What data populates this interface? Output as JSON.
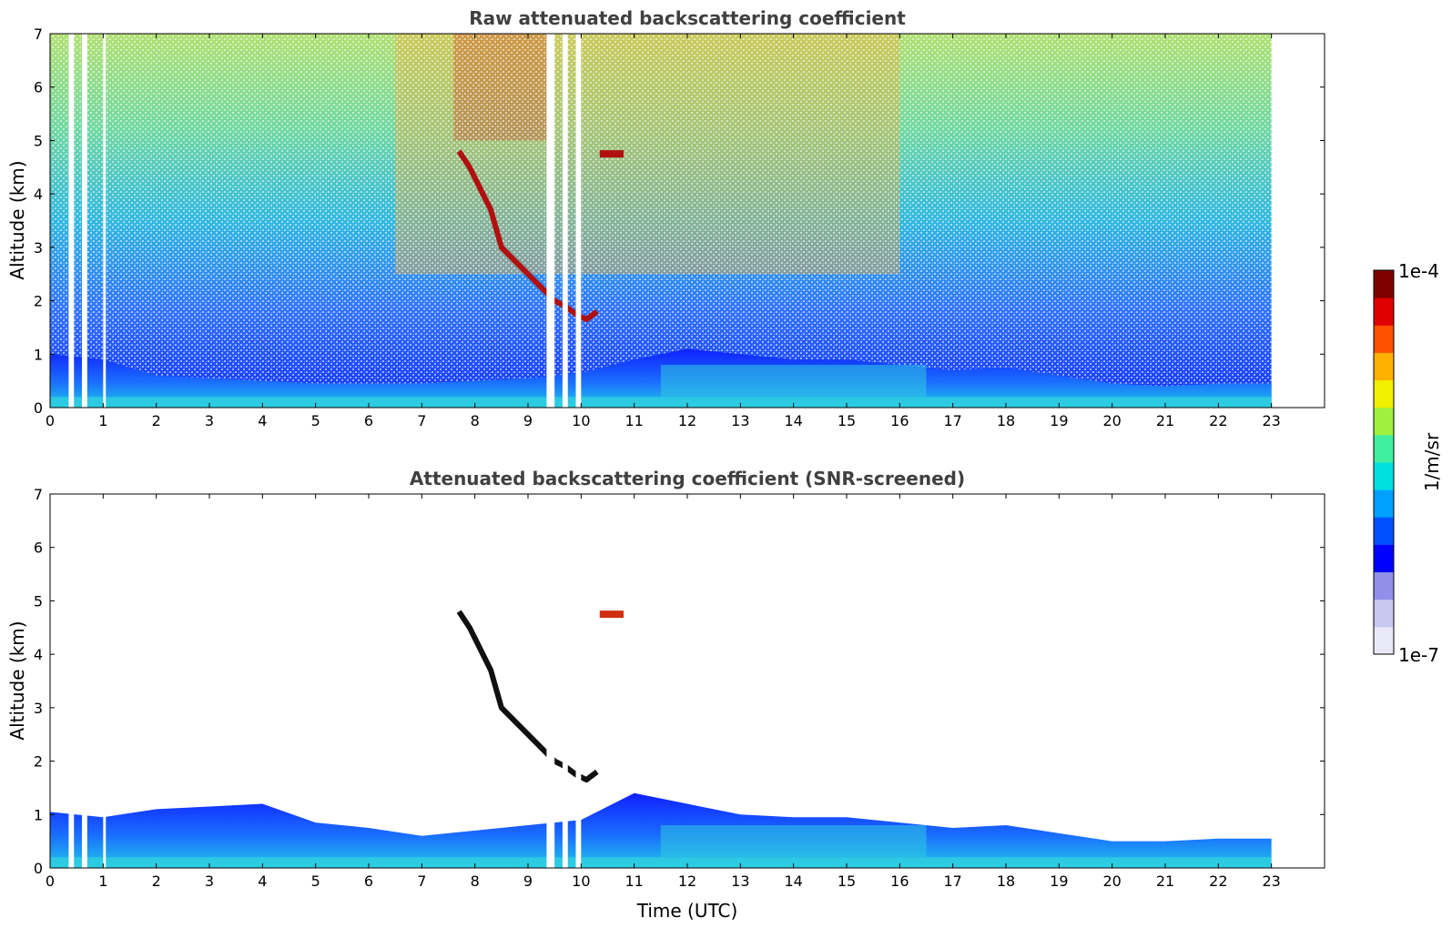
{
  "chart_data": [
    {
      "type": "heatmap",
      "title": "Raw attenuated backscattering coefficient",
      "xlabel": "",
      "ylabel": "Altitude (km)",
      "xlim": [
        0,
        24
      ],
      "ylim": [
        0,
        7
      ],
      "xticks": [
        "0",
        "1",
        "2",
        "3",
        "4",
        "5",
        "6",
        "7",
        "8",
        "9",
        "10",
        "11",
        "12",
        "13",
        "14",
        "15",
        "16",
        "17",
        "18",
        "19",
        "20",
        "21",
        "22",
        "23"
      ],
      "yticks": [
        "0",
        "1",
        "2",
        "3",
        "4",
        "5",
        "6",
        "7"
      ],
      "data_end_time": 23,
      "gaps": [
        [
          0.35,
          0.45
        ],
        [
          0.6,
          0.7
        ],
        [
          1.0,
          1.05
        ],
        [
          9.35,
          9.5
        ],
        [
          9.65,
          9.75
        ],
        [
          9.9,
          10.0
        ]
      ],
      "boundary_layer_top": {
        "x": [
          0,
          1,
          2,
          3,
          4,
          5,
          6,
          7,
          8,
          9,
          10,
          11,
          12,
          13,
          14,
          15,
          16,
          17,
          18,
          19,
          20,
          21,
          22,
          23
        ],
        "y": [
          1.0,
          0.9,
          0.6,
          0.55,
          0.5,
          0.45,
          0.45,
          0.45,
          0.5,
          0.55,
          0.65,
          0.9,
          1.1,
          1.0,
          0.9,
          0.9,
          0.8,
          0.7,
          0.75,
          0.6,
          0.45,
          0.4,
          0.45,
          0.45
        ]
      },
      "aerosol_layer": {
        "x": [
          7.7,
          7.9,
          8.1,
          8.3,
          8.5,
          8.7,
          8.9,
          9.1,
          9.3,
          9.5,
          9.7,
          9.9,
          10.1,
          10.3
        ],
        "y": [
          4.8,
          4.5,
          4.1,
          3.7,
          3.0,
          2.8,
          2.6,
          2.4,
          2.2,
          2.0,
          1.9,
          1.75,
          1.65,
          1.8
        ]
      },
      "elevated_layer": {
        "x": [
          10.35,
          10.8
        ],
        "y": [
          4.75,
          4.75
        ]
      },
      "noisy_region_high_signal": {
        "x_range": [
          6.5,
          16
        ],
        "y_range": [
          2.5,
          7
        ]
      }
    },
    {
      "type": "heatmap",
      "title": "Attenuated backscattering coefficient (SNR-screened)",
      "xlabel": "Time (UTC)",
      "ylabel": "Altitude (km)",
      "xlim": [
        0,
        24
      ],
      "ylim": [
        0,
        7
      ],
      "xticks": [
        "0",
        "1",
        "2",
        "3",
        "4",
        "5",
        "6",
        "7",
        "8",
        "9",
        "10",
        "11",
        "12",
        "13",
        "14",
        "15",
        "16",
        "17",
        "18",
        "19",
        "20",
        "21",
        "22",
        "23"
      ],
      "yticks": [
        "0",
        "1",
        "2",
        "3",
        "4",
        "5",
        "6",
        "7"
      ],
      "data_end_time": 23,
      "boundary_layer_top": {
        "x": [
          0,
          1,
          2,
          3,
          4,
          5,
          6,
          7,
          8,
          9,
          10,
          11,
          12,
          13,
          14,
          15,
          16,
          17,
          18,
          19,
          20,
          21,
          22,
          23
        ],
        "y": [
          1.05,
          0.95,
          1.1,
          1.15,
          1.2,
          0.85,
          0.75,
          0.6,
          0.7,
          0.8,
          0.9,
          1.4,
          1.2,
          1.0,
          0.95,
          0.95,
          0.85,
          0.75,
          0.8,
          0.65,
          0.5,
          0.5,
          0.55,
          0.55
        ]
      }
    }
  ],
  "colorbar": {
    "label": "1/m/sr",
    "max_label": "1e-4",
    "min_label": "1e-7",
    "colors": [
      "#e8e8f8",
      "#c8c8f0",
      "#9090e8",
      "#0000ff",
      "#0050ff",
      "#00a0ff",
      "#00e0e0",
      "#40f0a0",
      "#a0f040",
      "#f0f000",
      "#ffb000",
      "#ff5000",
      "#e00000",
      "#800000"
    ]
  }
}
